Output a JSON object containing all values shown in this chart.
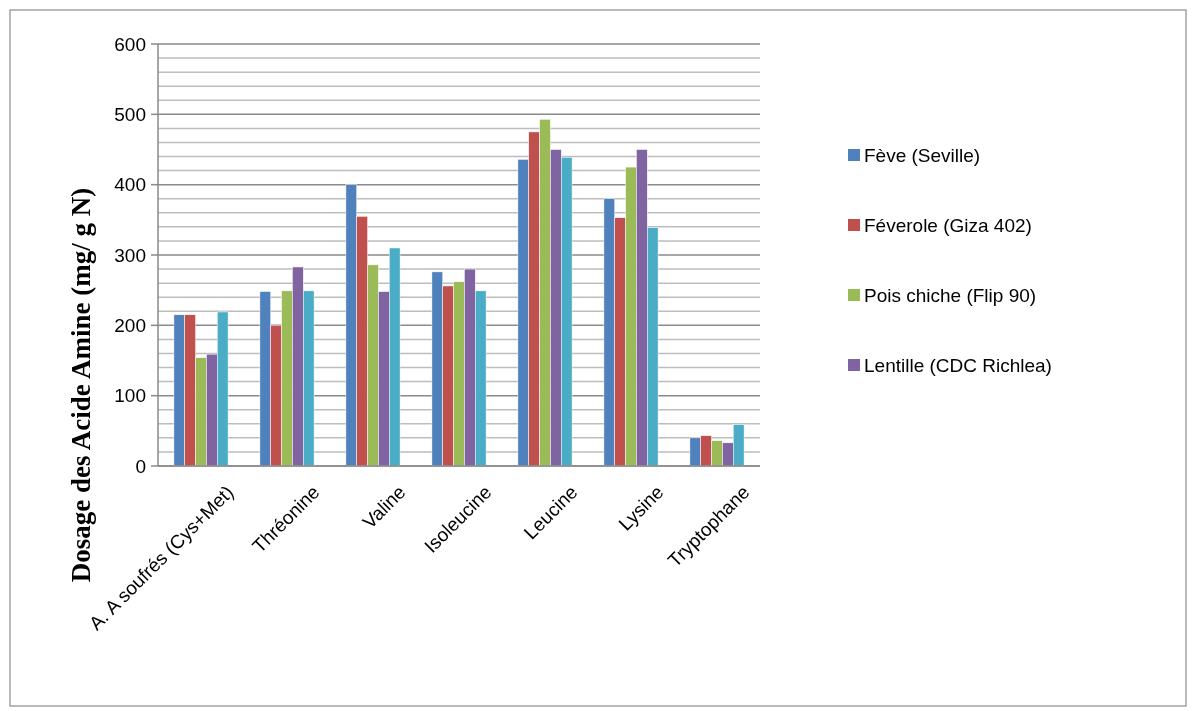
{
  "chart_data": {
    "type": "bar",
    "ylabel": "Dosage des Acide Amine (mg/ g N)",
    "categories": [
      "A. A soufrés (Cys+Met)",
      "Thréonine",
      "Valine",
      "Isoleucine",
      "Leucine",
      "Lysine",
      "Tryptophane"
    ],
    "series": [
      {
        "name": "Fève (Seville)",
        "color": "#4f81bd",
        "values": [
          215,
          248,
          400,
          276,
          436,
          380,
          40
        ]
      },
      {
        "name": "Féverole (Giza 402)",
        "color": "#c0504d",
        "values": [
          215,
          200,
          355,
          256,
          475,
          353,
          43
        ]
      },
      {
        "name": "Pois chiche (Flip 90)",
        "color": "#9bbb59",
        "values": [
          154,
          249,
          286,
          262,
          493,
          425,
          36
        ]
      },
      {
        "name": "Lentille (CDC Richlea)",
        "color": "#8064a2",
        "values": [
          159,
          283,
          248,
          280,
          450,
          450,
          33
        ]
      },
      {
        "color": "#4bacc6",
        "values": [
          219,
          249,
          310,
          249,
          439,
          339,
          59
        ]
      }
    ],
    "ylim": [
      0,
      600
    ],
    "yticks": [
      0,
      {
        "value": 20,
        "label": null
      },
      {
        "value": 40,
        "label": null
      },
      {
        "value": 60,
        "label": null
      },
      {
        "value": 80,
        "label": null
      },
      100,
      {
        "value": 120,
        "label": null
      },
      {
        "value": 140,
        "label": null
      },
      {
        "value": 160,
        "label": null
      },
      {
        "value": 180,
        "label": null
      },
      200,
      {
        "value": 220,
        "label": null
      },
      {
        "value": 240,
        "label": null
      },
      {
        "value": 260,
        "label": null
      },
      {
        "value": 280,
        "label": null
      },
      300,
      {
        "value": 320,
        "label": null
      },
      {
        "value": 340,
        "label": null
      },
      {
        "value": 360,
        "label": null
      },
      {
        "value": 380,
        "label": null
      },
      400,
      {
        "value": 420,
        "label": null
      },
      {
        "value": 440,
        "label": null
      },
      {
        "value": 460,
        "label": null
      },
      {
        "value": 480,
        "label": null
      },
      500,
      {
        "value": 520,
        "label": null
      },
      {
        "value": 540,
        "label": null
      },
      {
        "value": 560,
        "label": null
      },
      {
        "value": 580,
        "label": null
      },
      600
    ],
    "grid": true,
    "legend": "right"
  }
}
